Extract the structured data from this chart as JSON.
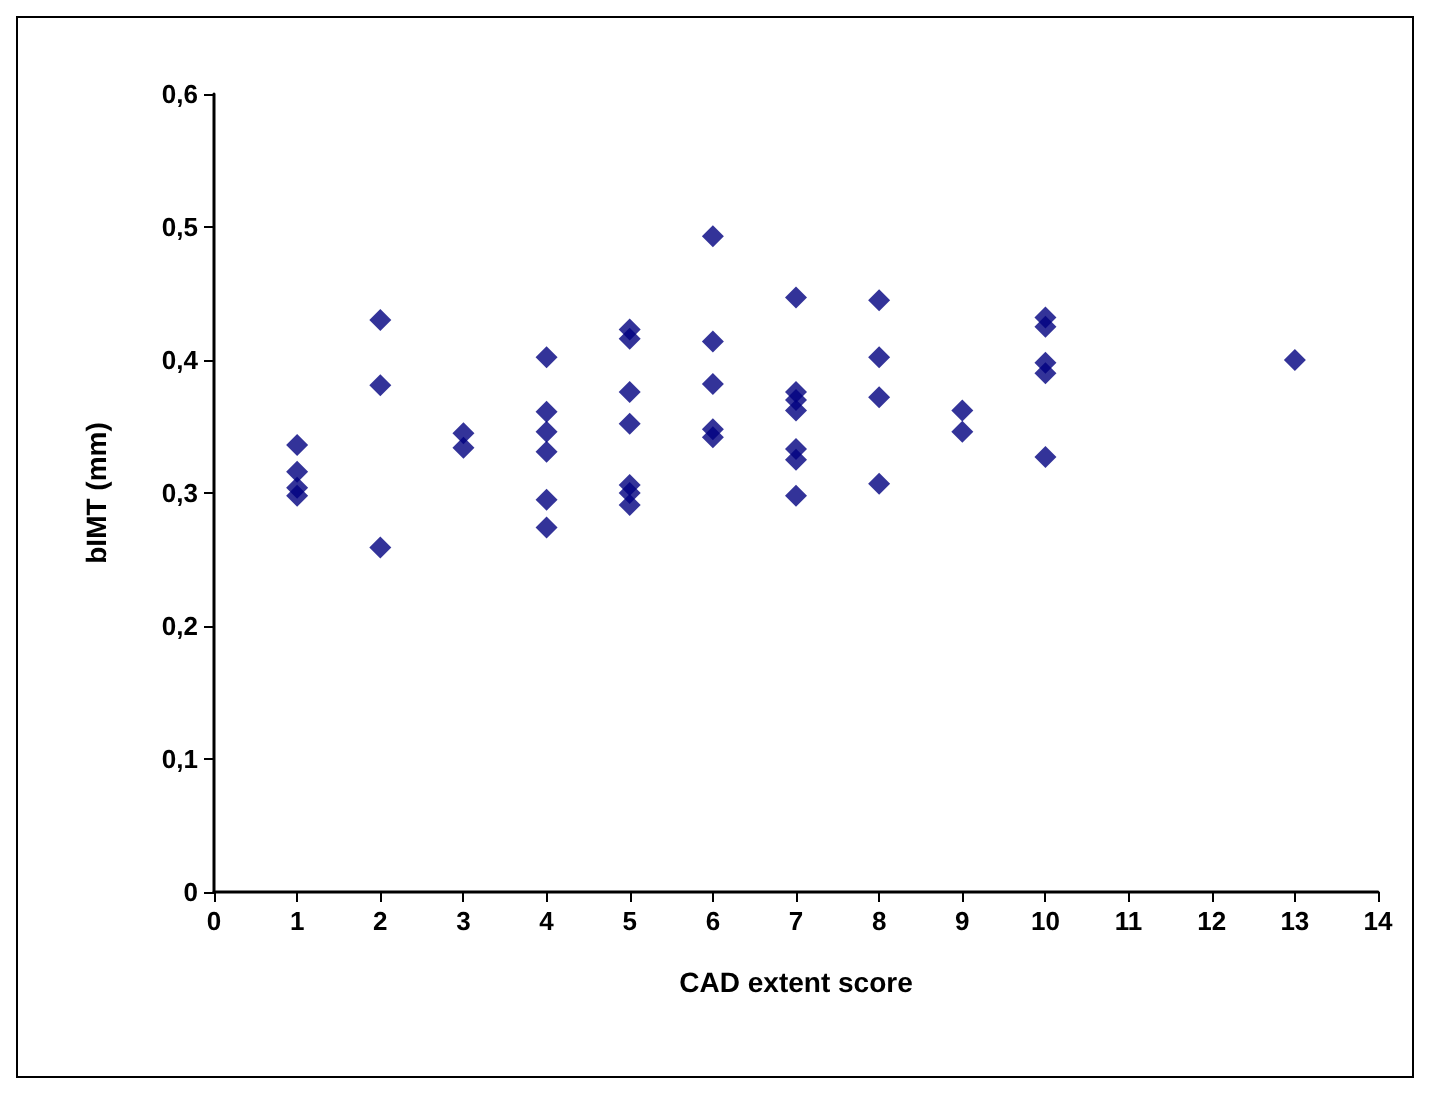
{
  "chart_data": {
    "type": "scatter",
    "xlabel": "CAD extent score",
    "ylabel": "bIMT (mm)",
    "marker": "diamond",
    "grid": false,
    "x": [
      1,
      1,
      1,
      1,
      2,
      2,
      2,
      3,
      3,
      4,
      4,
      4,
      4,
      4,
      4,
      5,
      5,
      5,
      5,
      5,
      5,
      5,
      6,
      6,
      6,
      6,
      6,
      7,
      7,
      7,
      7,
      7,
      7,
      7,
      8,
      8,
      8,
      8,
      9,
      9,
      10,
      10,
      10,
      10,
      10,
      13
    ],
    "series": [
      {
        "color": "#000080",
        "values": [
          0.336,
          0.316,
          0.304,
          0.298,
          0.43,
          0.381,
          0.259,
          0.345,
          0.334,
          0.402,
          0.361,
          0.346,
          0.331,
          0.295,
          0.274,
          0.423,
          0.416,
          0.376,
          0.352,
          0.306,
          0.3,
          0.291,
          0.493,
          0.414,
          0.382,
          0.348,
          0.342,
          0.447,
          0.376,
          0.37,
          0.362,
          0.333,
          0.325,
          0.298,
          0.445,
          0.402,
          0.372,
          0.307,
          0.362,
          0.346,
          0.432,
          0.425,
          0.398,
          0.39,
          0.327,
          0.4
        ]
      }
    ],
    "xlim": [
      0,
      14
    ],
    "xticks": [
      0,
      1,
      2,
      3,
      4,
      5,
      6,
      7,
      8,
      9,
      10,
      11,
      12,
      13,
      14
    ],
    "ylim": [
      0,
      0.6
    ],
    "yticks": [
      0,
      {
        "value": 0.1,
        "label": "0,1"
      },
      {
        "value": 0.2,
        "label": "0,2"
      },
      {
        "value": 0.3,
        "label": "0,3"
      },
      {
        "value": 0.4,
        "label": "0,4"
      },
      {
        "value": 0.5,
        "label": "0,5"
      },
      {
        "value": 0.6,
        "label": "0,6"
      }
    ]
  }
}
